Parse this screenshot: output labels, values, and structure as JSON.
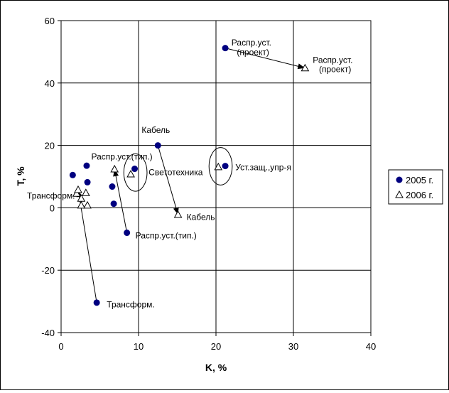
{
  "chart_data": {
    "type": "scatter",
    "title": "",
    "xlabel": "K, %",
    "ylabel": "T, %",
    "xlim": [
      0,
      40
    ],
    "ylim": [
      -40,
      60
    ],
    "xticks": [
      0,
      10,
      20,
      30,
      40
    ],
    "yticks": [
      -40,
      -20,
      0,
      20,
      40,
      60
    ],
    "grid": "horizontal and vertical at major ticks",
    "legend_position": "right",
    "colors": {
      "series_2005": "#000080",
      "series_2006": "#000000",
      "background": "#ffffff"
    },
    "series": [
      {
        "name": "2005 г.",
        "marker": "filled-circle",
        "points": [
          {
            "x": 1.5,
            "y": 10.5
          },
          {
            "x": 3.3,
            "y": 13.5
          },
          {
            "x": 3.4,
            "y": 8.2
          },
          {
            "x": 6.6,
            "y": 6.8
          },
          {
            "x": 6.8,
            "y": 1.3
          },
          {
            "x": 9.5,
            "y": 12.5
          },
          {
            "x": 12.5,
            "y": 20.0
          },
          {
            "x": 21.2,
            "y": 51.2
          },
          {
            "x": 21.2,
            "y": 13.4
          },
          {
            "x": 8.5,
            "y": -8.0
          },
          {
            "x": 4.6,
            "y": -30.4
          }
        ]
      },
      {
        "name": "2006 г.",
        "marker": "open-triangle",
        "points": [
          {
            "x": 2.0,
            "y": 4.6
          },
          {
            "x": 2.6,
            "y": 3.0
          },
          {
            "x": 3.2,
            "y": 4.8
          },
          {
            "x": 2.6,
            "y": 0.8
          },
          {
            "x": 3.4,
            "y": 0.8
          },
          {
            "x": 6.9,
            "y": 12.4
          },
          {
            "x": 9.0,
            "y": 10.8
          },
          {
            "x": 15.1,
            "y": -2.2
          },
          {
            "x": 20.3,
            "y": 13.1
          },
          {
            "x": 31.5,
            "y": 44.8
          },
          {
            "x": 2.2,
            "y": 5.8
          }
        ]
      }
    ],
    "arrows": [
      {
        "from": [
          21.2,
          51.2
        ],
        "to": [
          31.5,
          44.8
        ]
      },
      {
        "from": [
          12.5,
          20.0
        ],
        "to": [
          15.1,
          -2.2
        ]
      },
      {
        "from": [
          8.5,
          -8.0
        ],
        "to": [
          6.9,
          12.4
        ]
      },
      {
        "from": [
          4.6,
          -30.4
        ],
        "to": [
          2.2,
          5.8
        ]
      }
    ],
    "circles": [
      {
        "cx": 9.6,
        "cy": 11.3,
        "rx": 1.5,
        "ry": 6.0
      },
      {
        "cx": 20.6,
        "cy": 13.3,
        "rx": 1.5,
        "ry": 6.0
      }
    ],
    "annotations": [
      {
        "text": "Распр.уст.",
        "x": 22.0,
        "y": 52.0
      },
      {
        "text": "(проект)",
        "x": 22.7,
        "y": 49.0
      },
      {
        "text": "Распр.уст.",
        "x": 32.5,
        "y": 46.5
      },
      {
        "text": "(проект)",
        "x": 33.3,
        "y": 43.5
      },
      {
        "text": "Кабель",
        "x": 10.4,
        "y": 24.0
      },
      {
        "text": "Распр.уст.(тип.)",
        "x": 3.9,
        "y": 15.5
      },
      {
        "text": "Светотехника",
        "x": 11.3,
        "y": 10.5
      },
      {
        "text": "Уст.защ.,упр-я",
        "x": 22.5,
        "y": 12.0
      },
      {
        "text": "Трансформ.",
        "x": -4.4,
        "y": 2.9
      },
      {
        "text": "Кабель",
        "x": 16.2,
        "y": -3.9
      },
      {
        "text": "Распр.уст.(тип.)",
        "x": 9.6,
        "y": -9.8
      },
      {
        "text": "Трансформ.",
        "x": 5.9,
        "y": -31.9
      }
    ]
  }
}
